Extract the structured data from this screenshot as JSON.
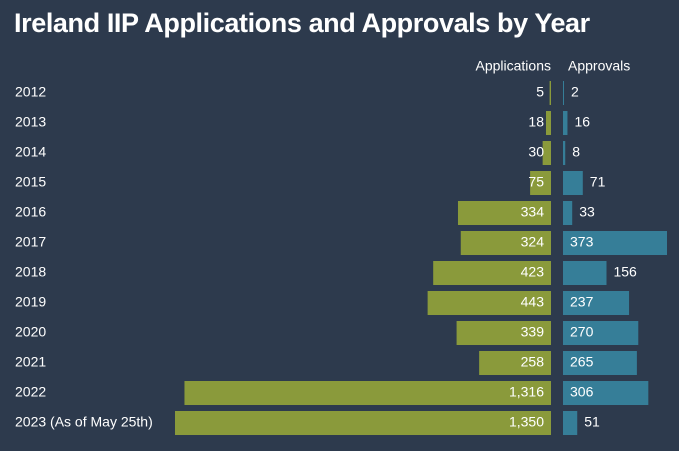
{
  "title": "Ireland IIP Applications and Approvals by Year",
  "chart_data": {
    "type": "bar",
    "title": "Ireland IIP Applications and Approvals by Year",
    "categories": [
      "2012",
      "2013",
      "2014",
      "2015",
      "2016",
      "2017",
      "2018",
      "2019",
      "2020",
      "2021",
      "2022",
      "2023 (As of May 25th)"
    ],
    "series": [
      {
        "name": "Applications",
        "color": "#8a9a3b",
        "values": [
          5,
          18,
          30,
          75,
          334,
          324,
          423,
          443,
          339,
          258,
          1316,
          1350
        ],
        "labels": [
          "5",
          "18",
          "30",
          "75",
          "334",
          "324",
          "423",
          "443",
          "339",
          "258",
          "1,316",
          "1,350"
        ]
      },
      {
        "name": "Approvals",
        "color": "#367e98",
        "values": [
          2,
          16,
          8,
          71,
          33,
          373,
          156,
          237,
          270,
          265,
          306,
          51
        ],
        "labels": [
          "2",
          "16",
          "8",
          "71",
          "33",
          "373",
          "156",
          "237",
          "270",
          "265",
          "306",
          "51"
        ]
      }
    ],
    "xlabel": "",
    "ylabel": ""
  }
}
